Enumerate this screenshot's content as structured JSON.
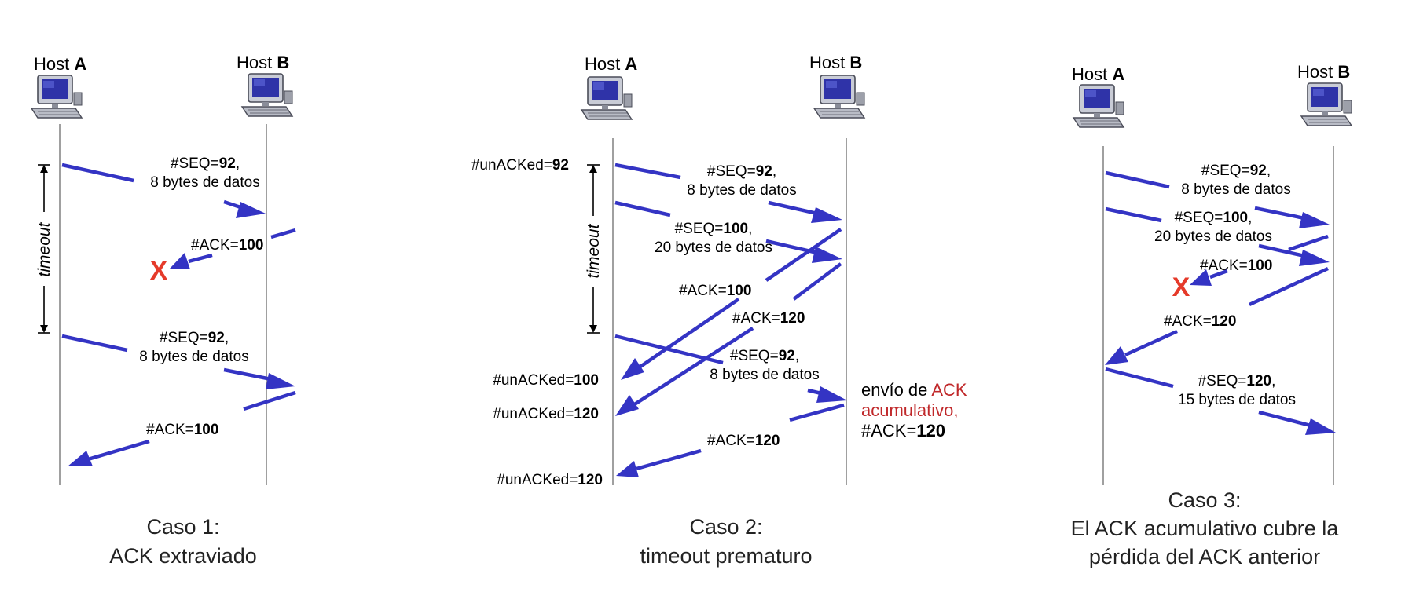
{
  "colors": {
    "arrow": "#3434c4",
    "lost_mark": "#e53a2a",
    "highlight_text": "#c0282a",
    "timeline": "#777777"
  },
  "hosts": {
    "a_prefix": "Host ",
    "a_letter": "A",
    "b_prefix": "Host ",
    "b_letter": "B",
    "icon": "desktop-computer-icon"
  },
  "timeout_label": "timeout",
  "lost_mark": "X",
  "case1": {
    "caption_line1": "Caso 1:",
    "caption_line2": "ACK extraviado",
    "msg1": {
      "prefix": "#SEQ=",
      "value": "92",
      "suffix": ",",
      "line2": "8 bytes de datos"
    },
    "ack1": {
      "prefix": "#ACK=",
      "value": "100"
    },
    "msg2": {
      "prefix": "#SEQ=",
      "value": "92",
      "suffix": ",",
      "line2": "8 bytes de datos"
    },
    "ack2": {
      "prefix": "#ACK=",
      "value": "100"
    }
  },
  "case2": {
    "caption_line1": "Caso 2:",
    "caption_line2": "timeout prematuro",
    "unacked": [
      {
        "prefix": "#unACKed=",
        "value": "92"
      },
      {
        "prefix": "#unACKed=",
        "value": "100"
      },
      {
        "prefix": "#unACKed=",
        "value": "120"
      },
      {
        "prefix": "#unACKed=",
        "value": "120"
      }
    ],
    "msg1": {
      "prefix": "#SEQ=",
      "value": "92",
      "suffix": ",",
      "line2": "8 bytes de datos"
    },
    "msg2": {
      "prefix": "#SEQ=",
      "value": "100",
      "suffix": ",",
      "line2": "20 bytes de datos"
    },
    "ack1": {
      "prefix": "#ACK=",
      "value": "100"
    },
    "ack2": {
      "prefix": "#ACK=",
      "value": "120"
    },
    "msg3": {
      "prefix": "#SEQ=",
      "value": "92",
      "suffix": ",",
      "line2": "8 bytes de datos"
    },
    "ack3": {
      "prefix": "#ACK=",
      "value": "120"
    },
    "note": {
      "line1_plain": "envío de ",
      "line1_red": "ACK",
      "line2_red": "acumulativo,",
      "line3_prefix": "#ACK=",
      "line3_value": "120"
    }
  },
  "case3": {
    "caption_line1": "Caso 3:",
    "caption_line2": "El ACK acumulativo cubre la",
    "caption_line3": "pérdida del ACK anterior",
    "msg1": {
      "prefix": "#SEQ=",
      "value": "92",
      "suffix": ",",
      "line2": "8 bytes de datos"
    },
    "msg2": {
      "prefix": "#SEQ=",
      "value": "100",
      "suffix": ",",
      "line2": "20 bytes de datos"
    },
    "ack1": {
      "prefix": "#ACK=",
      "value": "100"
    },
    "ack2": {
      "prefix": "#ACK=",
      "value": "120"
    },
    "msg3": {
      "prefix": "#SEQ=",
      "value": "120",
      "suffix": ",",
      "line2": "15 bytes de datos"
    }
  }
}
